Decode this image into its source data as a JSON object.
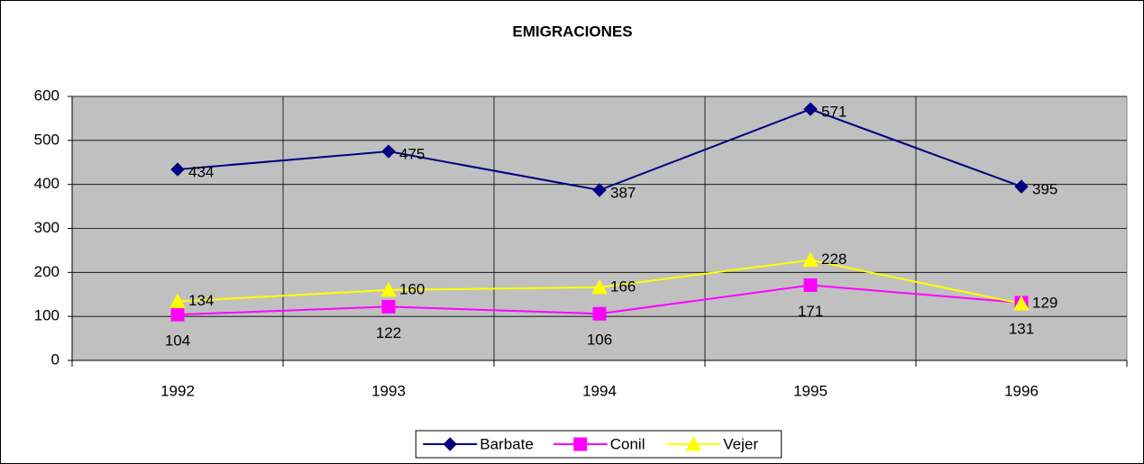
{
  "chart_data": {
    "type": "line",
    "title": "EMIGRACIONES",
    "categories": [
      "1992",
      "1993",
      "1994",
      "1995",
      "1996"
    ],
    "series": [
      {
        "name": "Barbate",
        "color": "#000080",
        "marker": "diamond",
        "values": [
          434,
          475,
          387,
          571,
          395
        ]
      },
      {
        "name": "Conil",
        "color": "#ff00ff",
        "marker": "square",
        "values": [
          104,
          122,
          106,
          171,
          131
        ]
      },
      {
        "name": "Vejer",
        "color": "#ffff00",
        "marker": "triangle",
        "values": [
          134,
          160,
          166,
          228,
          129
        ]
      }
    ],
    "ylim": [
      0,
      600
    ],
    "yticks": [
      0,
      100,
      200,
      300,
      400,
      500,
      600
    ],
    "grid": true,
    "legend": "bottom",
    "plot_background": "#c0c0c0"
  }
}
